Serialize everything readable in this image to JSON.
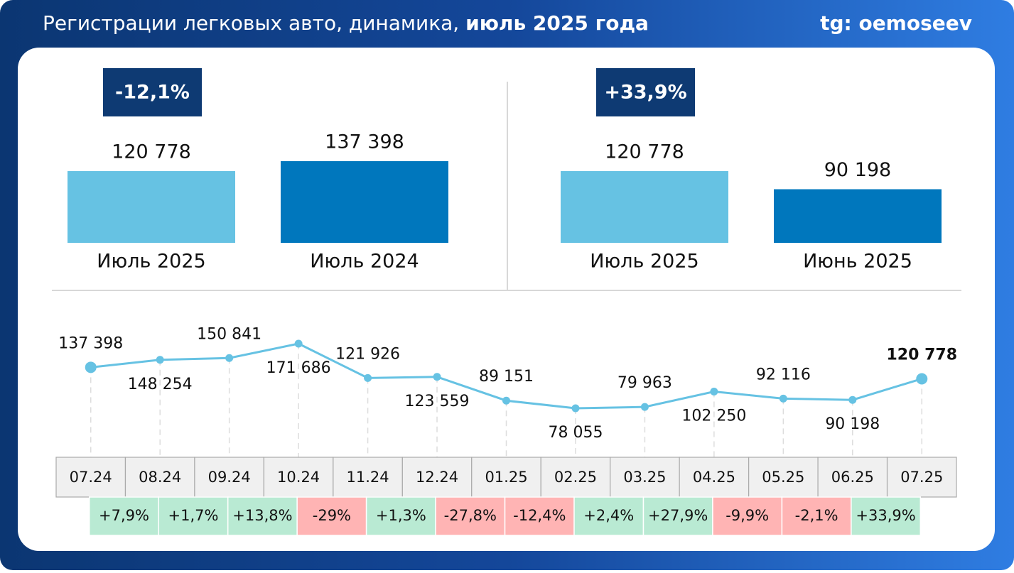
{
  "header": {
    "title": "Регистрации легковых авто, динамика, ",
    "title_bold": "июль 2025 года",
    "source": "tg: oemoseev"
  },
  "chart_data": [
    {
      "type": "bar",
      "badge": "-12,1%",
      "categories": [
        "Июль 2025",
        "Июль 2024"
      ],
      "values": [
        120778,
        137398
      ],
      "value_labels": [
        "120 778",
        "137 398"
      ],
      "colors": [
        "#66c2e3",
        "#0077bd"
      ]
    },
    {
      "type": "bar",
      "badge": "+33,9%",
      "categories": [
        "Июль 2025",
        "Июнь 2025"
      ],
      "values": [
        120778,
        90198
      ],
      "value_labels": [
        "120 778",
        "90 198"
      ],
      "colors": [
        "#66c2e3",
        "#0077bd"
      ]
    },
    {
      "type": "line",
      "color": "#66c2e3",
      "categories": [
        "07.24",
        "08.24",
        "09.24",
        "10.24",
        "11.24",
        "12.24",
        "01.25",
        "02.25",
        "03.25",
        "04.25",
        "05.25",
        "06.25",
        "07.25"
      ],
      "values": [
        137398,
        148254,
        150841,
        171686,
        121926,
        123559,
        89151,
        78055,
        79963,
        102250,
        92116,
        90198,
        120778
      ],
      "value_labels": [
        "137 398",
        "148 254",
        "150 841",
        "171 686",
        "121 926",
        "123 559",
        "89 151",
        "78 055",
        "79 963",
        "102 250",
        "92 116",
        "90 198",
        "120 778"
      ],
      "changes": [
        7.9,
        1.7,
        13.8,
        -29,
        1.3,
        -27.8,
        -12.4,
        2.4,
        27.9,
        -9.9,
        -2.1,
        33.9
      ],
      "change_labels": [
        "+7,9%",
        "+1,7%",
        "+13,8%",
        "-29%",
        "+1,3%",
        "-27,8%",
        "-12,4%",
        "+2,4%",
        "+27,9%",
        "-9,9%",
        "-2,1%",
        "+33,9%"
      ]
    }
  ]
}
